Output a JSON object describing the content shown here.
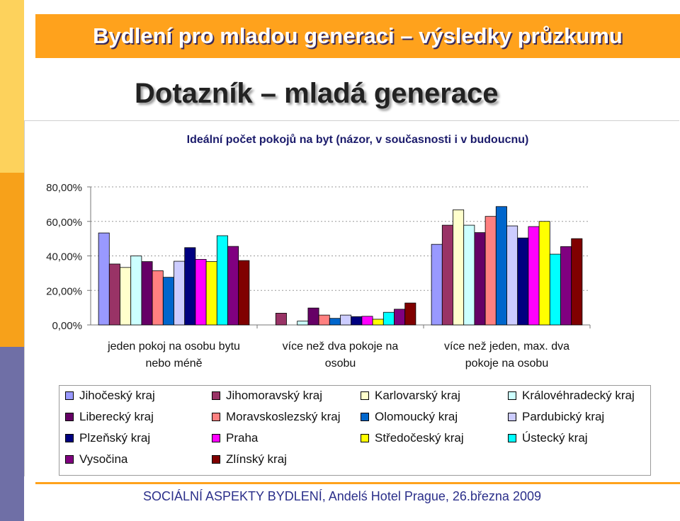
{
  "slide": {
    "title": "Bydlení pro mladou generaci – výsledky průzkumu",
    "subtitle": "Dotazník – mladá generace",
    "footer": "SOCIÁLNÍ ASPEKTY BYDLENÍ, Andelś Hotel Prague, 26.března 2009"
  },
  "theme": {
    "accent": "#ffa21c",
    "side_top": "#fdd25c",
    "side_mid": "#f7a11a",
    "side_bot": "#6f6fa6"
  },
  "chart_data": {
    "type": "bar",
    "title": "Ideální počet pokojů na byt (názor, v současnosti i v budoucnu)",
    "xlabel": "",
    "ylabel": "",
    "ylim": [
      0,
      80
    ],
    "y_ticks": [
      "80,00%",
      "60,00%",
      "40,00%",
      "20,00%",
      "0,00%"
    ],
    "y_tick_values": [
      80,
      60,
      40,
      20,
      0
    ],
    "grid": true,
    "legend_position": "bottom",
    "categories": [
      "jeden pokoj na osobu bytu nebo méně",
      "více než dva pokoje na osobu",
      "více než jeden, max. dva pokoje na osobu"
    ],
    "category_lines": [
      [
        "jeden pokoj na osobu bytu",
        "nebo méně"
      ],
      [
        "více než dva pokoje na",
        "osobu"
      ],
      [
        "více než jeden, max. dva",
        "pokoje na osobu"
      ]
    ],
    "series": [
      {
        "name": "Jihočeský kraj",
        "color": "#9999ff",
        "values": [
          53.3,
          0,
          46.7
        ]
      },
      {
        "name": "Jihomoravský kraj",
        "color": "#993366",
        "values": [
          35.3,
          6.8,
          57.8
        ]
      },
      {
        "name": "Karlovarský kraj",
        "color": "#ffffcc",
        "values": [
          33.3,
          0,
          66.7
        ]
      },
      {
        "name": "Královéhradecký kraj",
        "color": "#ccffff",
        "values": [
          40.0,
          2.2,
          57.8
        ]
      },
      {
        "name": "Liberecký kraj",
        "color": "#660066",
        "values": [
          36.7,
          9.8,
          53.5
        ]
      },
      {
        "name": "Moravskoslezský kraj",
        "color": "#ff8080",
        "values": [
          31.4,
          5.7,
          62.9
        ]
      },
      {
        "name": "Olomoucký kraj",
        "color": "#0066cc",
        "values": [
          27.6,
          3.8,
          68.6
        ]
      },
      {
        "name": "Pardubický kraj",
        "color": "#ccccff",
        "values": [
          36.9,
          5.7,
          57.4
        ]
      },
      {
        "name": "Plzeňský kraj",
        "color": "#000080",
        "values": [
          44.8,
          4.8,
          50.4
        ]
      },
      {
        "name": "Praha",
        "color": "#ff00ff",
        "values": [
          38.0,
          5.0,
          57.0
        ]
      },
      {
        "name": "Středočeský kraj",
        "color": "#ffff00",
        "values": [
          36.7,
          3.3,
          60.0
        ]
      },
      {
        "name": "Ústecký kraj",
        "color": "#00ffff",
        "values": [
          51.7,
          7.3,
          41.0
        ]
      },
      {
        "name": "Vysočina",
        "color": "#800080",
        "values": [
          45.5,
          9.1,
          45.4
        ]
      },
      {
        "name": "Zlínský kraj",
        "color": "#800000",
        "values": [
          37.3,
          12.7,
          50.0
        ]
      }
    ]
  }
}
